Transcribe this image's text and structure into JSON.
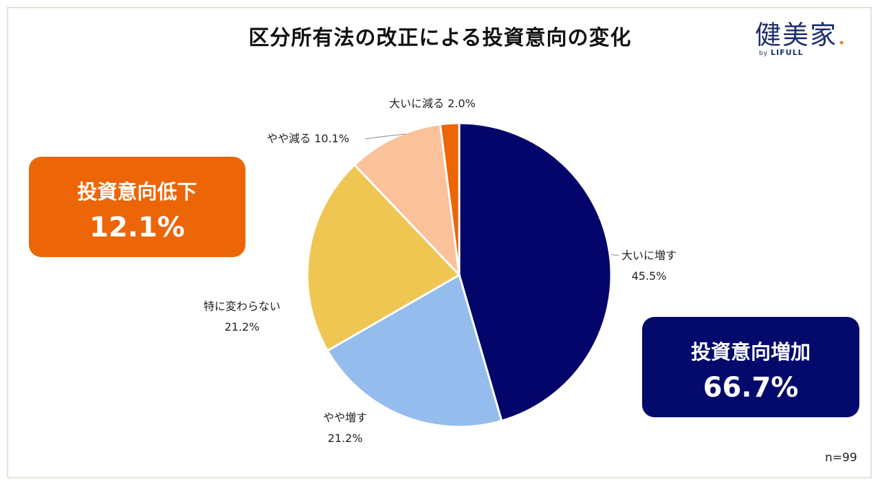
{
  "title": "区分所有法の改正による投資意向の変化",
  "logo": {
    "main": "健美家",
    "by": "by",
    "brand": "LIFULL",
    "accent": "#f07b1d",
    "color": "#1e2f6e"
  },
  "summary_down": {
    "label": "投資意向低下",
    "value": "12.1%",
    "color": "#ec6608"
  },
  "summary_up": {
    "label": "投資意向増加",
    "value": "66.7%",
    "color": "#030a6b"
  },
  "n_label": "n=99",
  "chart_data": {
    "type": "pie",
    "title": "区分所有法の改正による投資意向の変化",
    "slices": [
      {
        "label": "大いに増す",
        "value": 45.5,
        "display": "45.5%",
        "color": "#03056b"
      },
      {
        "label": "やや増す",
        "value": 21.2,
        "display": "21.2%",
        "color": "#94bcec"
      },
      {
        "label": "特に変わらない",
        "value": 21.2,
        "display": "21.2%",
        "color": "#f0c653"
      },
      {
        "label": "やや減る",
        "value": 10.1,
        "display": "10.1%",
        "color": "#fbc19a"
      },
      {
        "label": "大いに減る",
        "value": 2.0,
        "display": "2.0%",
        "color": "#ec6608"
      }
    ],
    "start": "12 o'clock",
    "direction": "clockwise",
    "sample_size": 99
  }
}
